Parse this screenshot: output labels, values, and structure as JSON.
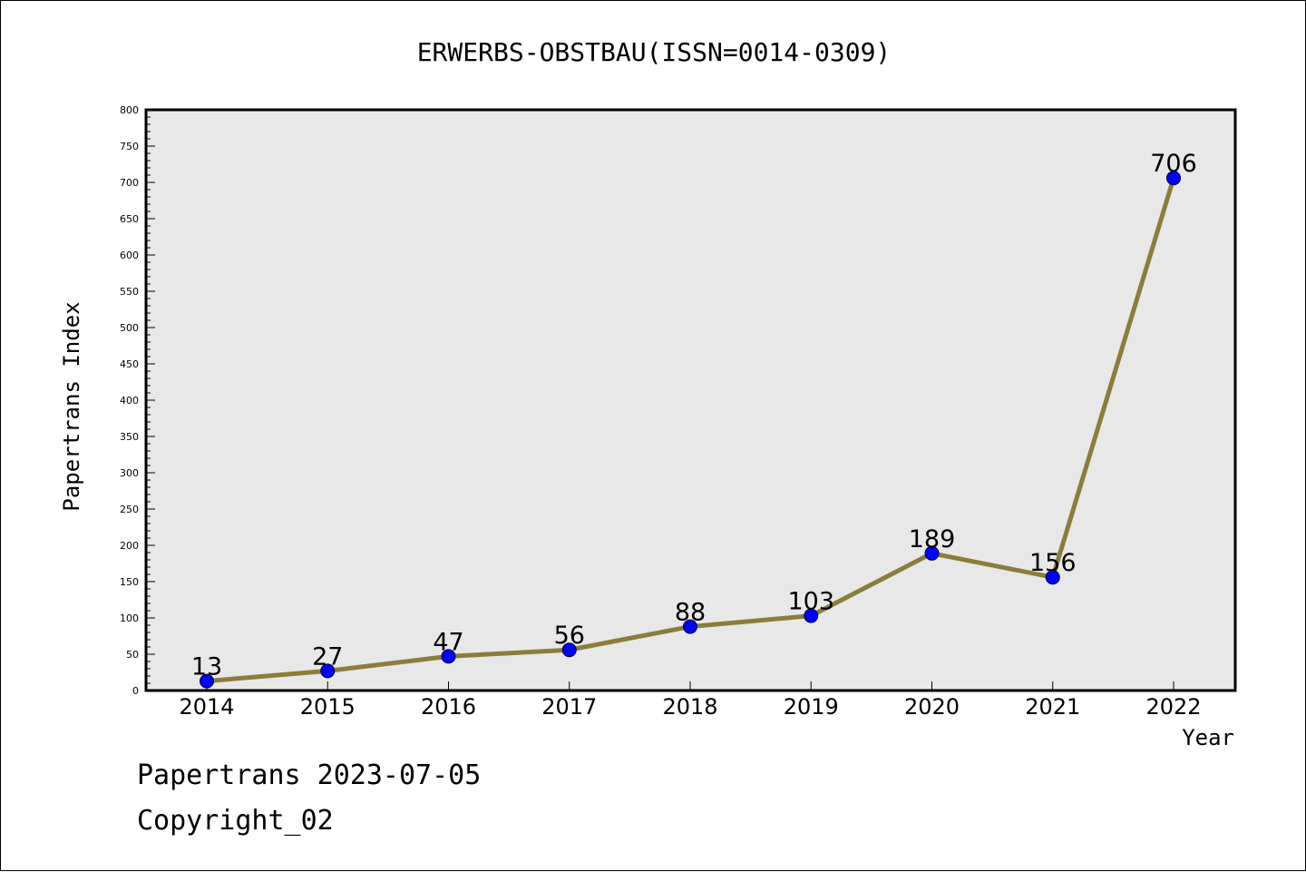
{
  "chart_data": {
    "type": "line",
    "title": "ERWERBS-OBSTBAU(ISSN=0014-0309)",
    "xlabel": "Year",
    "ylabel": "Papertrans Index",
    "categories": [
      "2014",
      "2015",
      "2016",
      "2017",
      "2018",
      "2019",
      "2020",
      "2021",
      "2022"
    ],
    "values": [
      13,
      27,
      47,
      56,
      88,
      103,
      189,
      156,
      706
    ],
    "ylim": [
      0,
      800
    ],
    "yticks": [
      0,
      50,
      100,
      150,
      200,
      250,
      300,
      350,
      400,
      450,
      500,
      550,
      600,
      650,
      700,
      750,
      800
    ],
    "grid": false,
    "colors": {
      "line": "#8b7d3a",
      "marker": "#0000ff",
      "plot_bg": "#e8e8e8"
    }
  },
  "footer": {
    "date_line": "Papertrans 2023-07-05",
    "copyright": "Copyright_02"
  }
}
